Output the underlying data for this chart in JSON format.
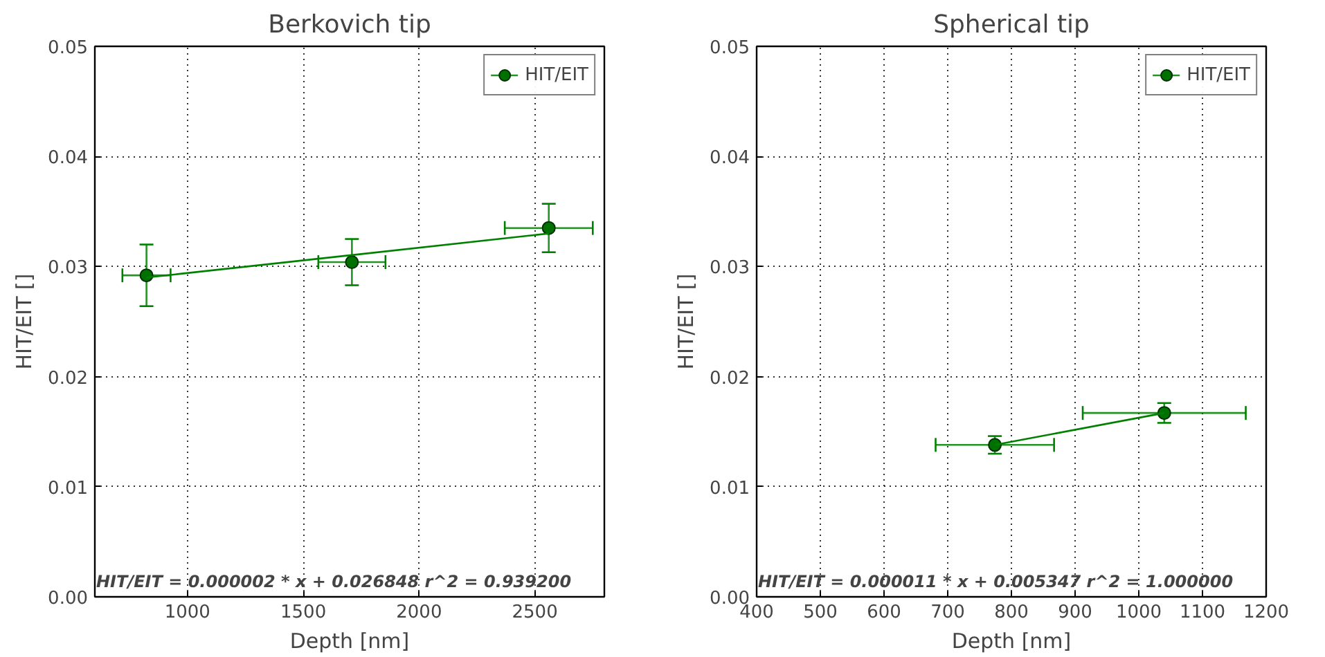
{
  "chart_data": [
    {
      "type": "scatter",
      "title": "Berkovich tip",
      "xlabel": "Depth [nm]",
      "ylabel": "HIT/EIT []",
      "xlim": [
        600,
        2800
      ],
      "xticks": [
        1000,
        1500,
        2000,
        2500
      ],
      "ylim": [
        0,
        0.05
      ],
      "yticks": [
        {
          "value": 0,
          "label": "0.00"
        },
        {
          "value": 0.01,
          "label": "0.01"
        },
        {
          "value": 0.02,
          "label": "0.02"
        },
        {
          "value": 0.03,
          "label": "0.03"
        },
        {
          "value": 0.04,
          "label": "0.04"
        },
        {
          "value": 0.05,
          "label": "0.05"
        }
      ],
      "grid": true,
      "legend": "top right",
      "series": [
        {
          "name": "HIT/EIT",
          "marker": "circle",
          "color": "#008000",
          "x": [
            823,
            1710,
            2560
          ],
          "values": [
            0.0292,
            0.0304,
            0.0335
          ],
          "errors": [
            0.0028,
            0.0021,
            0.0022
          ],
          "xerrors": [
            104,
            145,
            190
          ]
        },
        {
          "type": "line",
          "color": "#008000",
          "x": [
            823,
            2560
          ],
          "values": [
            0.029,
            0.033
          ]
        }
      ],
      "annotations": [
        "HIT/EIT = 0.000002 * x + 0.026848 r^2 = 0.939200"
      ]
    },
    {
      "type": "scatter",
      "title": "Spherical tip",
      "xlabel": "Depth [nm]",
      "ylabel": "HIT/EIT []",
      "xlim": [
        400,
        1200
      ],
      "xticks": [
        400,
        500,
        600,
        700,
        800,
        900,
        1000,
        1100,
        1200
      ],
      "ylim": [
        0,
        0.05
      ],
      "yticks": [
        {
          "value": 0,
          "label": "0.00"
        },
        {
          "value": 0.01,
          "label": "0.01"
        },
        {
          "value": 0.02,
          "label": "0.02"
        },
        {
          "value": 0.03,
          "label": "0.03"
        },
        {
          "value": 0.04,
          "label": "0.04"
        },
        {
          "value": 0.05,
          "label": "0.05"
        }
      ],
      "grid": true,
      "legend": "top right",
      "series": [
        {
          "name": "HIT/EIT",
          "marker": "circle",
          "color": "#008000",
          "x": [
            774,
            1040
          ],
          "values": [
            0.0138,
            0.0167
          ],
          "errors": [
            0.0008,
            0.0009
          ],
          "xerrors": [
            93,
            128
          ]
        },
        {
          "type": "line",
          "color": "#008000",
          "x": [
            774,
            1040
          ],
          "values": [
            0.0138,
            0.0167
          ]
        }
      ],
      "annotations": [
        "HIT/EIT = 0.000011 * x + 0.005347 r^2 = 1.000000"
      ]
    }
  ]
}
